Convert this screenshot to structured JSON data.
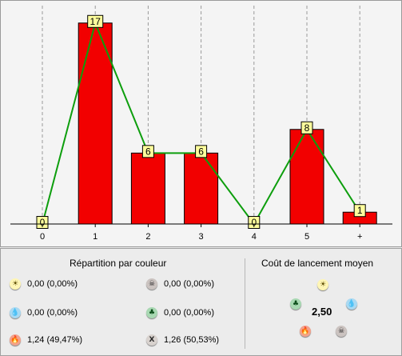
{
  "chart_data": {
    "type": "bar",
    "categories": [
      "0",
      "1",
      "2",
      "3",
      "4",
      "5",
      "+"
    ],
    "values": [
      0,
      17,
      6,
      6,
      0,
      8,
      1
    ],
    "data_labels": [
      "0",
      "17",
      "6",
      "6",
      "0",
      "8",
      "1"
    ],
    "ylim": [
      0,
      18
    ],
    "grid": "vertical dashed",
    "overlay_line": true,
    "colors": {
      "bar": "#f20000",
      "line": "#0d9e0d",
      "label_bg": "#ffff9c"
    }
  },
  "color_distribution": {
    "title": "Répartition par couleur",
    "items": [
      {
        "icon": "white-mana-icon",
        "mana": "white",
        "glyph": "☀",
        "value": "0,00 (0,00%)"
      },
      {
        "icon": "black-mana-icon",
        "mana": "black",
        "glyph": "☠",
        "value": "0,00 (0,00%)"
      },
      {
        "icon": "blue-mana-icon",
        "mana": "blue",
        "glyph": "💧",
        "value": "0,00 (0,00%)"
      },
      {
        "icon": "green-mana-icon",
        "mana": "green",
        "glyph": "♣",
        "value": "0,00 (0,00%)"
      },
      {
        "icon": "red-mana-icon",
        "mana": "red",
        "glyph": "🔥",
        "value": "1,24 (49,47%)"
      },
      {
        "icon": "colorless-mana-icon",
        "mana": "colorless",
        "glyph": "X",
        "value": "1,26 (50,53%)"
      }
    ]
  },
  "average_cost": {
    "title": "Coût de lancement moyen",
    "value": "2,50"
  }
}
